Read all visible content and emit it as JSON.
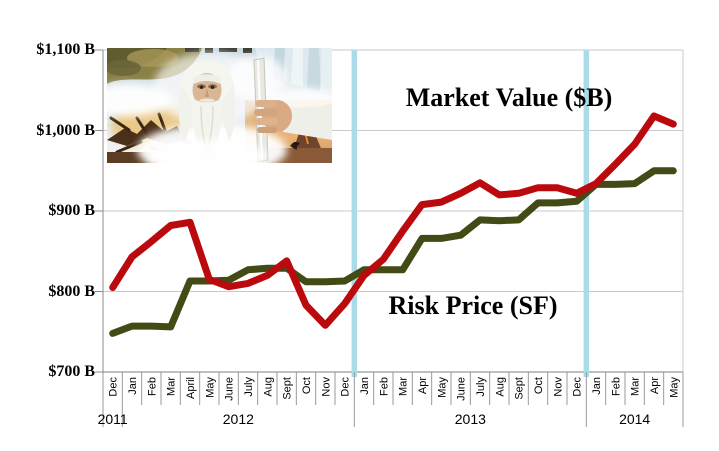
{
  "chart_data": {
    "type": "line",
    "title": "",
    "x_months": [
      "Dec",
      "Jan",
      "Feb",
      "Mar",
      "April",
      "May",
      "June",
      "July",
      "Aug",
      "Sept",
      "Oct",
      "Nov",
      "Dec",
      "Jan",
      "Feb",
      "Mar",
      "Apr",
      "May",
      "June",
      "July",
      "Aug",
      "Sept",
      "Oct",
      "Nov",
      "Dec",
      "Jan",
      "Feb",
      "Mar",
      "Apr",
      "May"
    ],
    "x_years": [
      {
        "label": "2011",
        "months": 1
      },
      {
        "label": "2012",
        "months": 12
      },
      {
        "label": "2013",
        "months": 12
      },
      {
        "label": "2014",
        "months": 5
      }
    ],
    "y_tick_labels": [
      "$1,100 B",
      "$1,000 B",
      "$900 B",
      "$800 B",
      "$700 B"
    ],
    "y_tick_values": [
      1100,
      1000,
      900,
      800,
      700
    ],
    "ylim": [
      700,
      1100
    ],
    "grid": true,
    "legend_position": "inline-annotations",
    "year_divider_after_month_index": [
      13,
      25
    ],
    "year_divider_color": "#a9dbe9",
    "gridline_color": "#c9c9c9",
    "axis_color": "#8c8c8c",
    "series": [
      {
        "name": "Market Value ($B)",
        "color": "#bb0a0e",
        "values": [
          805,
          843,
          862,
          882,
          886,
          815,
          806,
          810,
          820,
          838,
          783,
          758,
          785,
          820,
          840,
          875,
          908,
          911,
          922,
          935,
          920,
          922,
          929,
          929,
          922,
          934,
          958,
          983,
          1018,
          1008
        ]
      },
      {
        "name": "Risk Price (SF)",
        "color": "#434a16",
        "values": [
          748,
          757,
          757,
          756,
          813,
          813,
          814,
          827,
          829,
          829,
          812,
          812,
          813,
          827,
          827,
          827,
          866,
          866,
          870,
          889,
          888,
          889,
          910,
          910,
          912,
          933,
          933,
          934,
          950,
          950
        ]
      }
    ],
    "annotations": [
      {
        "text": "Market Value ($B)"
      },
      {
        "text": "Risk Price (SF)"
      }
    ],
    "embedded_image": "gandalf-the-white-collage"
  }
}
